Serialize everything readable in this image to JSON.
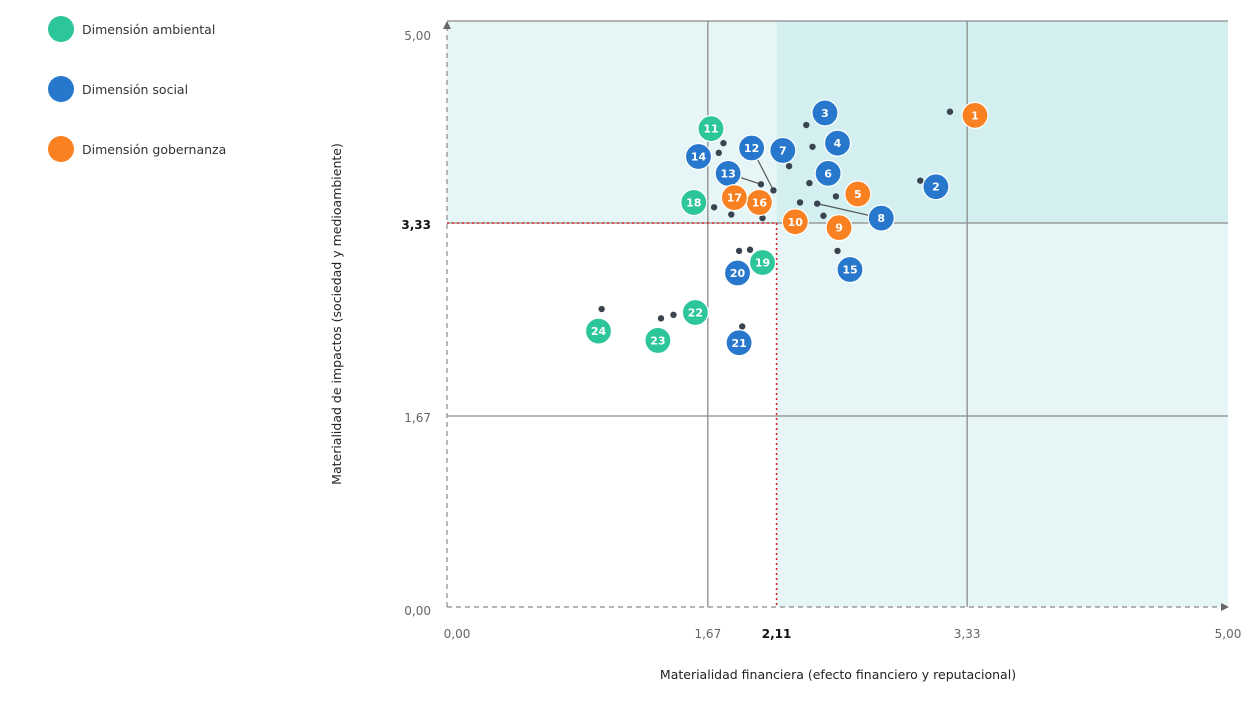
{
  "legend": [
    {
      "label": "Dimensión ambiental",
      "color": "#2dc59a"
    },
    {
      "label": "Dimensión social",
      "color": "#2778cc"
    },
    {
      "label": "Dimensión gobernanza",
      "color": "#f98122"
    }
  ],
  "chart_data": {
    "type": "scatter",
    "title": "",
    "xlabel": "Materialidad financiera (efecto financiero y reputacional)",
    "ylabel": "Materialidad de impactos (sociedad y medioambiente)",
    "xlim": [
      0,
      5
    ],
    "ylim": [
      0,
      5
    ],
    "x_ticks": [
      {
        "value": 0,
        "label": "0,00"
      },
      {
        "value": 1.67,
        "label": "1,67"
      },
      {
        "value": 2.11,
        "label": "2,11",
        "bold": true
      },
      {
        "value": 3.33,
        "label": "3,33"
      },
      {
        "value": 5,
        "label": "5,00"
      }
    ],
    "y_ticks": [
      {
        "value": 0,
        "label": "0,00"
      },
      {
        "value": 1.67,
        "label": "1,67"
      },
      {
        "value": 3.33,
        "label": "3,33",
        "bold": true
      },
      {
        "value": 5,
        "label": "5,00"
      }
    ],
    "thresholds": {
      "x": 2.11,
      "y": 3.33
    },
    "grid": true,
    "legend_position": "top-left",
    "colors": {
      "ambiental": "#2dc59a",
      "social": "#2778cc",
      "gobernanza": "#f98122",
      "dot": "#3a4450"
    },
    "series": [
      {
        "name": "Dimensión ambiental",
        "key": "ambiental",
        "points": [
          {
            "label": "11",
            "x": 1.69,
            "y": 4.11
          },
          {
            "label": "18",
            "x": 1.58,
            "y": 3.5
          },
          {
            "label": "19",
            "x": 2.02,
            "y": 2.99
          },
          {
            "label": "22",
            "x": 1.59,
            "y": 2.56
          },
          {
            "label": "23",
            "x": 1.35,
            "y": 2.32
          },
          {
            "label": "24",
            "x": 0.97,
            "y": 2.4
          }
        ]
      },
      {
        "name": "Dimensión social",
        "key": "social",
        "points": [
          {
            "label": "2",
            "x": 3.13,
            "y": 3.63
          },
          {
            "label": "3",
            "x": 2.42,
            "y": 4.24
          },
          {
            "label": "4",
            "x": 2.5,
            "y": 3.99
          },
          {
            "label": "6",
            "x": 2.44,
            "y": 3.74
          },
          {
            "label": "7",
            "x": 2.15,
            "y": 3.93
          },
          {
            "label": "8",
            "x": 2.78,
            "y": 3.37
          },
          {
            "label": "12",
            "x": 1.95,
            "y": 3.95
          },
          {
            "label": "13",
            "x": 1.8,
            "y": 3.74
          },
          {
            "label": "14",
            "x": 1.61,
            "y": 3.88
          },
          {
            "label": "15",
            "x": 2.58,
            "y": 2.93
          },
          {
            "label": "20",
            "x": 1.86,
            "y": 2.9
          },
          {
            "label": "21",
            "x": 1.87,
            "y": 2.3
          }
        ]
      },
      {
        "name": "Dimensión gobernanza",
        "key": "gobernanza",
        "points": [
          {
            "label": "1",
            "x": 3.38,
            "y": 4.22
          },
          {
            "label": "5",
            "x": 2.63,
            "y": 3.57
          },
          {
            "label": "9",
            "x": 2.51,
            "y": 3.29
          },
          {
            "label": "10",
            "x": 2.23,
            "y": 3.34
          },
          {
            "label": "16",
            "x": 2.0,
            "y": 3.5
          },
          {
            "label": "17",
            "x": 1.84,
            "y": 3.54
          }
        ]
      }
    ],
    "exact_points": [
      [
        3.22,
        4.25
      ],
      [
        2.3,
        4.14
      ],
      [
        2.34,
        3.96
      ],
      [
        1.77,
        3.99
      ],
      [
        1.74,
        3.91
      ],
      [
        2.19,
        3.8
      ],
      [
        2.32,
        3.66
      ],
      [
        3.03,
        3.68
      ],
      [
        2.01,
        3.65
      ],
      [
        2.09,
        3.6
      ],
      [
        2.49,
        3.55
      ],
      [
        2.26,
        3.5
      ],
      [
        2.37,
        3.49
      ],
      [
        1.71,
        3.46
      ],
      [
        1.82,
        3.4
      ],
      [
        2.02,
        3.37
      ],
      [
        2.41,
        3.39
      ],
      [
        1.87,
        3.09
      ],
      [
        1.94,
        3.1
      ],
      [
        2.5,
        3.09
      ],
      [
        0.99,
        2.59
      ],
      [
        1.37,
        2.51
      ],
      [
        1.45,
        2.54
      ],
      [
        1.89,
        2.44
      ]
    ],
    "leaders": [
      {
        "from": "12",
        "to": [
          2.09,
          3.6
        ]
      },
      {
        "from": "13",
        "to": [
          2.01,
          3.65
        ]
      },
      {
        "from": "8",
        "to": [
          2.37,
          3.49
        ]
      }
    ]
  }
}
